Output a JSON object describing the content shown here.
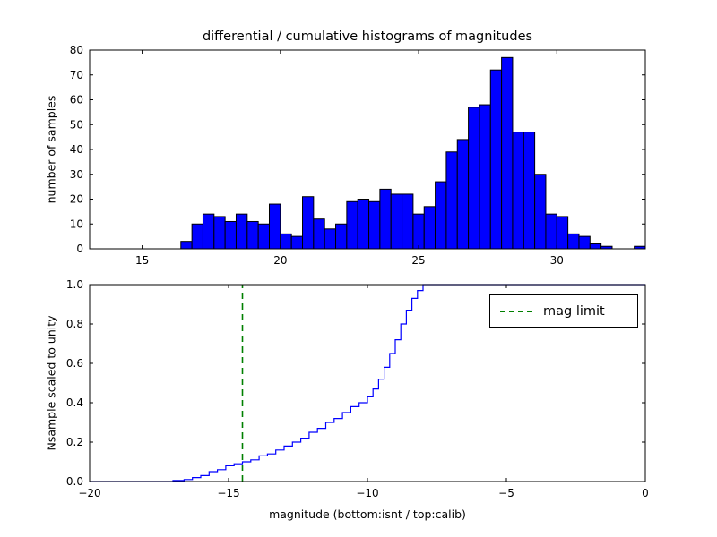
{
  "figure": {
    "background": "#ffffff"
  },
  "chart_data": [
    {
      "type": "bar",
      "kind": "histogram",
      "title": "differential / cumulative histograms of magnitudes",
      "xlabel": "",
      "ylabel": "number of samples",
      "xlim": [
        13.1,
        33.2
      ],
      "ylim": [
        0,
        80
      ],
      "xticks": [
        15,
        20,
        25,
        30
      ],
      "yticks": [
        0,
        10,
        20,
        30,
        40,
        50,
        60,
        70,
        80
      ],
      "grid": false,
      "bar_color": "#0000ff",
      "bar_edge_color": "#000000",
      "bin_start": 16.4,
      "bin_width": 0.4,
      "values": [
        3,
        10,
        14,
        13,
        11,
        14,
        11,
        10,
        18,
        6,
        5,
        21,
        12,
        8,
        10,
        19,
        20,
        19,
        24,
        22,
        22,
        14,
        17,
        27,
        39,
        44,
        57,
        58,
        72,
        77,
        47,
        47,
        30,
        14,
        13,
        6,
        5,
        2,
        1,
        0,
        0,
        1
      ]
    },
    {
      "type": "line",
      "kind": "cumulative-step",
      "title": "",
      "xlabel": "magnitude (bottom:isnt / top:calib)",
      "ylabel": "Nsample scaled to unity",
      "xlim": [
        -20,
        0
      ],
      "ylim": [
        0.0,
        1.0
      ],
      "xticks": [
        -20,
        -15,
        -10,
        -5,
        0
      ],
      "yticks": [
        0.0,
        0.2,
        0.4,
        0.6,
        0.8,
        1.0
      ],
      "grid": false,
      "line_color": "#0000ff",
      "x": [
        -20,
        -17.0,
        -16.6,
        -16.3,
        -16.0,
        -15.7,
        -15.4,
        -15.1,
        -14.8,
        -14.5,
        -14.2,
        -13.9,
        -13.6,
        -13.3,
        -13.0,
        -12.7,
        -12.4,
        -12.1,
        -11.8,
        -11.5,
        -11.2,
        -10.9,
        -10.6,
        -10.3,
        -10.0,
        -9.8,
        -9.6,
        -9.4,
        -9.2,
        -9.0,
        -8.8,
        -8.6,
        -8.4,
        -8.2,
        -8.0,
        0
      ],
      "y": [
        0,
        0.005,
        0.01,
        0.02,
        0.03,
        0.05,
        0.06,
        0.08,
        0.09,
        0.1,
        0.11,
        0.13,
        0.14,
        0.16,
        0.18,
        0.2,
        0.22,
        0.25,
        0.27,
        0.3,
        0.32,
        0.35,
        0.38,
        0.4,
        0.43,
        0.47,
        0.52,
        0.58,
        0.65,
        0.72,
        0.8,
        0.87,
        0.93,
        0.97,
        1.0,
        1.0
      ],
      "vline": {
        "x": -14.5,
        "color": "#008000",
        "linestyle": "dashed",
        "label": "mag limit"
      },
      "legend": {
        "position": "upper right",
        "entries": [
          {
            "label": "mag limit",
            "color": "#008000",
            "dash": true
          }
        ]
      }
    }
  ]
}
